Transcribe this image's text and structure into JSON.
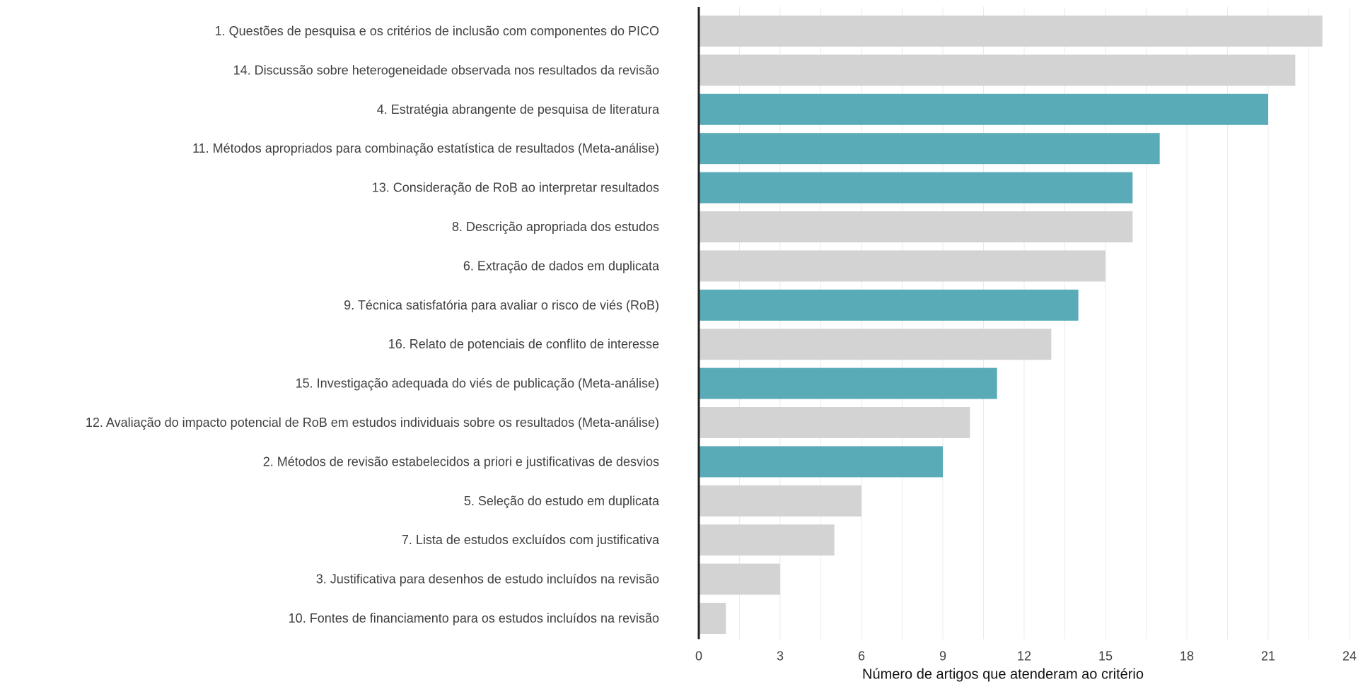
{
  "chart_data": {
    "type": "bar",
    "orientation": "horizontal",
    "xlabel": "Número de artigos que atenderam ao critério",
    "ylabel": "",
    "xlim": [
      0,
      24
    ],
    "xticks": [
      0,
      3,
      6,
      9,
      12,
      15,
      18,
      21,
      24
    ],
    "grid": true,
    "colors": {
      "highlight": "#5aabb8",
      "default": "#d3d3d3"
    },
    "categories": [
      "1. Questões de pesquisa e os critérios de inclusão com componentes do PICO",
      "14. Discussão sobre heterogeneidade observada nos resultados da revisão",
      "4. Estratégia abrangente de pesquisa de literatura",
      "11. Métodos apropriados para combinação estatística de resultados (Meta-análise)",
      "13. Consideração de RoB ao interpretar resultados",
      "8. Descrição apropriada dos estudos",
      "6. Extração de dados em duplicata",
      "9. Técnica satisfatória para avaliar o risco de viés (RoB)",
      "16. Relato de potenciais de conflito de interesse",
      "15. Investigação adequada do viés de publicação (Meta-análise)",
      "12. Avaliação do impacto potencial de RoB em estudos individuais sobre os resultados (Meta-análise)",
      "2. Métodos de revisão estabelecidos a priori e justificativas de desvios",
      "5. Seleção do estudo em duplicata",
      "7. Lista de estudos excluídos com justificativa",
      "3. Justificativa para desenhos de estudo incluídos na revisão",
      "10. Fontes de financiamento para os estudos incluídos na revisão"
    ],
    "values": [
      23,
      22,
      21,
      17,
      16,
      16,
      15,
      14,
      13,
      11,
      10,
      9,
      6,
      5,
      3,
      1
    ],
    "highlighted": [
      false,
      false,
      true,
      true,
      true,
      false,
      false,
      true,
      false,
      true,
      false,
      true,
      false,
      false,
      false,
      false
    ]
  }
}
